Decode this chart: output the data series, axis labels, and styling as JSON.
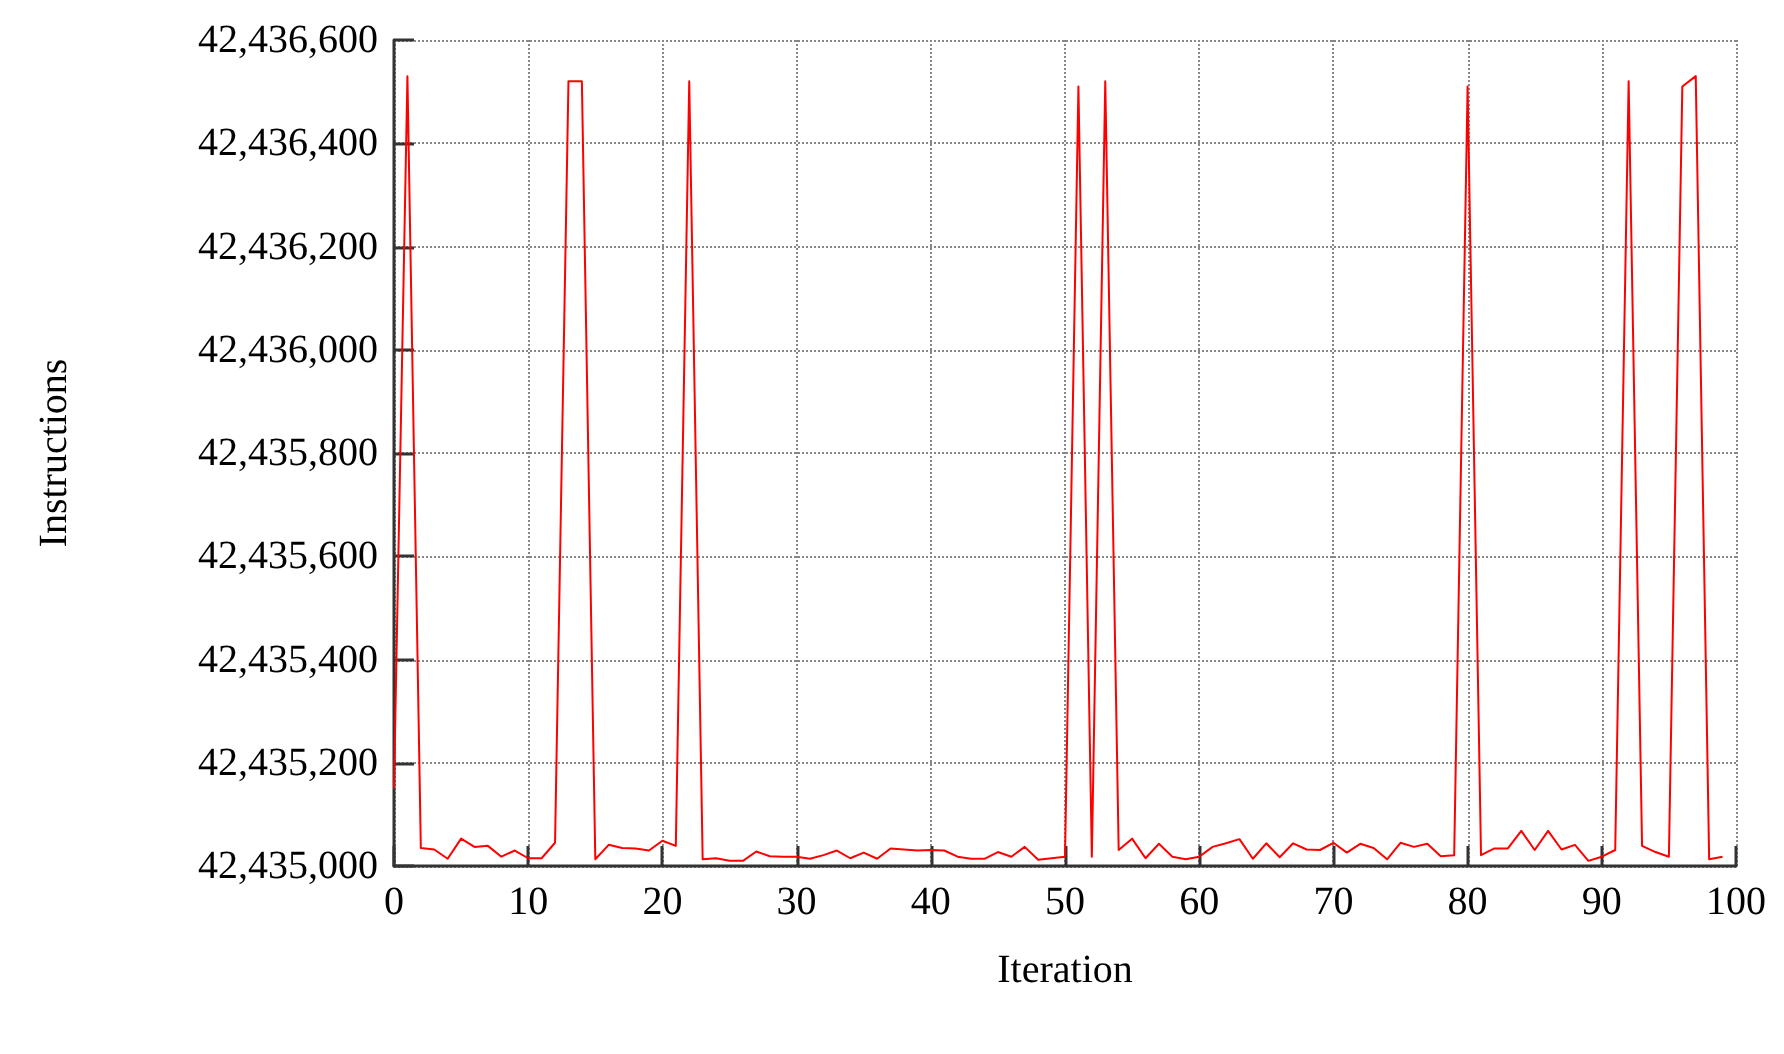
{
  "chart_data": {
    "type": "line",
    "xlabel": "Iteration",
    "ylabel": "Instructions",
    "x": [
      0,
      1,
      2,
      3,
      4,
      5,
      6,
      7,
      8,
      9,
      10,
      11,
      12,
      13,
      14,
      15,
      16,
      17,
      18,
      19,
      20,
      21,
      22,
      23,
      24,
      25,
      26,
      27,
      28,
      29,
      30,
      31,
      32,
      33,
      34,
      35,
      36,
      37,
      38,
      39,
      40,
      41,
      42,
      43,
      44,
      45,
      46,
      47,
      48,
      49,
      50,
      51,
      52,
      53,
      54,
      55,
      56,
      57,
      58,
      59,
      60,
      61,
      62,
      63,
      64,
      65,
      66,
      67,
      68,
      69,
      70,
      71,
      72,
      73,
      74,
      75,
      76,
      77,
      78,
      79,
      80,
      81,
      82,
      83,
      84,
      85,
      86,
      87,
      88,
      89,
      90,
      91,
      92,
      93,
      94,
      95,
      96,
      97,
      98,
      99
    ],
    "series": [
      {
        "color": "#ff0000",
        "values": [
          42435150,
          42436530,
          42435035,
          42435032,
          42435014,
          42435053,
          42435037,
          42435039,
          42435018,
          42435030,
          42435015,
          42435015,
          42435045,
          42436520,
          42436520,
          42435013,
          42435041,
          42435035,
          42435034,
          42435030,
          42435049,
          42435039,
          42436520,
          42435013,
          42435015,
          42435010,
          42435010,
          42435028,
          42435019,
          42435018,
          42435018,
          42435014,
          42435021,
          42435030,
          42435015,
          42435026,
          42435014,
          42435034,
          42435032,
          42435030,
          42435031,
          42435030,
          42435018,
          42435014,
          42435014,
          42435027,
          42435018,
          42435037,
          42435012,
          42435015,
          42435018,
          42436510,
          42435018,
          42436520,
          42435031,
          42435053,
          42435015,
          42435043,
          42435018,
          42435013,
          42435018,
          42435037,
          42435044,
          42435052,
          42435014,
          42435044,
          42435017,
          42435044,
          42435032,
          42435031,
          42435045,
          42435026,
          42435043,
          42435035,
          42435013,
          42435045,
          42435037,
          42435043,
          42435019,
          42435021,
          42436510,
          42435021,
          42435034,
          42435034,
          42435068,
          42435031,
          42435068,
          42435032,
          42435041,
          42435010,
          42435018,
          42435031,
          42436520,
          42435039,
          42435027,
          42435018,
          42436510,
          42436530,
          42435013,
          42435018
        ]
      }
    ],
    "xlim": [
      0,
      100
    ],
    "xticks": [
      0,
      10,
      20,
      30,
      40,
      50,
      60,
      70,
      80,
      90,
      100
    ],
    "ylim": [
      42435000,
      42436600
    ],
    "yticks": [
      {
        "value": 42435000,
        "label": "42,435,000"
      },
      {
        "value": 42435200,
        "label": "42,435,200"
      },
      {
        "value": 42435400,
        "label": "42,435,400"
      },
      {
        "value": 42435600,
        "label": "42,435,600"
      },
      {
        "value": 42435800,
        "label": "42,435,800"
      },
      {
        "value": 42436000,
        "label": "42,436,000"
      },
      {
        "value": 42436200,
        "label": "42,436,200"
      },
      {
        "value": 42436400,
        "label": "42,436,400"
      },
      {
        "value": 42436600,
        "label": "42,436,600"
      }
    ],
    "grid": true,
    "marker": "none",
    "line_style": "solid"
  }
}
